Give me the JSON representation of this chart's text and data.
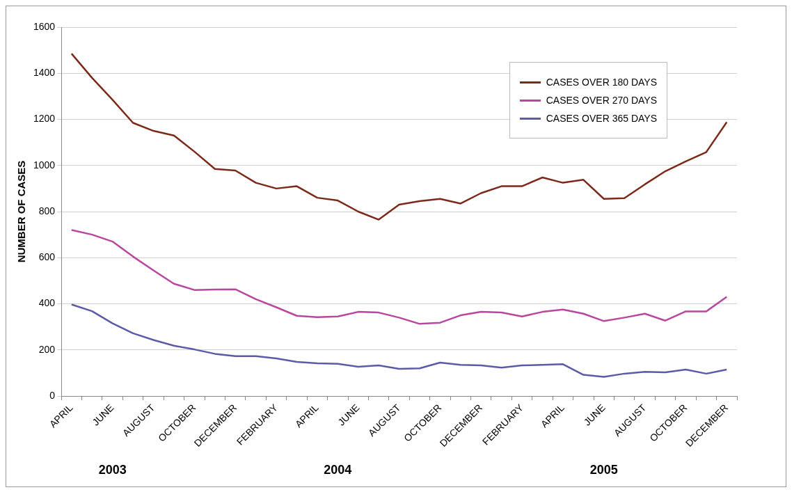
{
  "chart_data": {
    "type": "line",
    "ylabel": "NUMBER OF CASES",
    "categories": [
      "APRIL",
      null,
      "JUNE",
      null,
      "AUGUST",
      null,
      "OCTOBER",
      null,
      "DECEMBER",
      null,
      "FEBRUARY",
      null,
      "APRIL",
      null,
      "JUNE",
      null,
      "AUGUST",
      null,
      "OCTOBER",
      null,
      "DECEMBER",
      null,
      "FEBRUARY",
      null,
      "APRIL",
      null,
      "JUNE",
      null,
      "AUGUST",
      null,
      "OCTOBER",
      null,
      "DECEMBER"
    ],
    "series": [
      {
        "name": "CASES OVER 180 DAYS",
        "color": "#7b2a1a",
        "values": [
          1485,
          1380,
          1285,
          1185,
          1150,
          1130,
          1060,
          985,
          978,
          925,
          900,
          910,
          860,
          848,
          800,
          765,
          830,
          845,
          855,
          835,
          880,
          910,
          910,
          948,
          925,
          938,
          855,
          858,
          918,
          975,
          1018,
          1058,
          1188
        ]
      },
      {
        "name": "CASES OVER 270 DAYS",
        "color": "#b8479f",
        "values": [
          720,
          700,
          670,
          605,
          545,
          487,
          460,
          462,
          463,
          420,
          385,
          348,
          342,
          345,
          365,
          362,
          340,
          313,
          318,
          350,
          365,
          362,
          345,
          365,
          375,
          357,
          325,
          340,
          357,
          327,
          367,
          367,
          430
        ]
      },
      {
        "name": "CASES OVER 365 DAYS",
        "color": "#5b5ba8",
        "values": [
          397,
          368,
          315,
          272,
          243,
          218,
          202,
          183,
          173,
          173,
          163,
          148,
          142,
          140,
          127,
          133,
          118,
          120,
          145,
          135,
          133,
          123,
          133,
          135,
          138,
          92,
          83,
          97,
          105,
          103,
          115,
          97,
          115
        ]
      }
    ],
    "ylim": [
      0,
      1600
    ],
    "yticks": [
      0,
      200,
      400,
      600,
      800,
      1000,
      1200,
      1400,
      1600
    ],
    "grid": "y",
    "legend": "top right",
    "marker": "none",
    "line_style": "solid",
    "annotations": [
      "2003",
      "2004",
      "2005"
    ]
  }
}
